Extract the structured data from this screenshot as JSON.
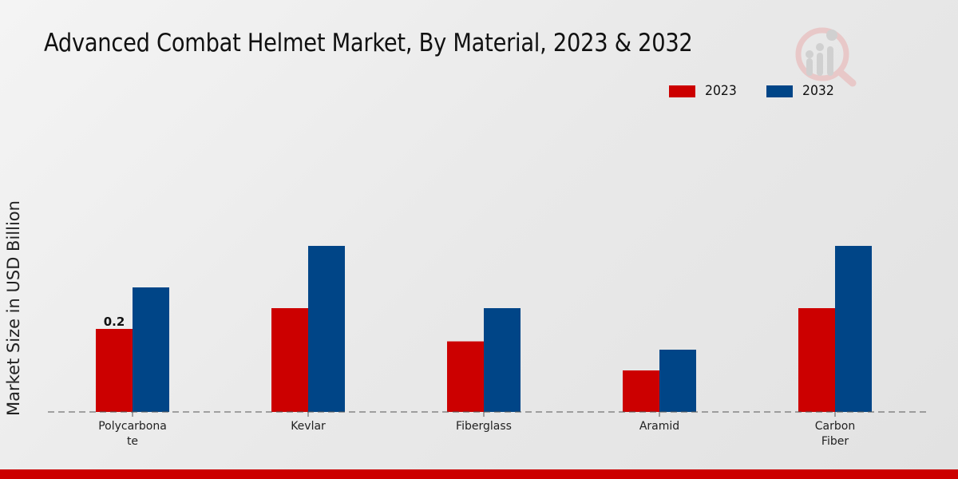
{
  "title": "Advanced Combat Helmet Market, By Material, 2023 & 2032",
  "logo_icon": "analytics-magnifier-logo-icon",
  "colors": {
    "2023": "#cc0000",
    "2032": "#004587",
    "accent_bar": "#cc0000"
  },
  "chart_data": {
    "type": "bar",
    "title": "Advanced Combat Helmet Market, By Material, 2023 & 2032",
    "xlabel": "",
    "ylabel": "Market Size in USD Billion",
    "categories": [
      "Polycarbonate",
      "Kevlar",
      "Fiberglass",
      "Aramid",
      "Carbon Fiber"
    ],
    "category_labels": [
      [
        "Polycarbona",
        "te"
      ],
      [
        "Kevlar"
      ],
      [
        "Fiberglass"
      ],
      [
        "Aramid"
      ],
      [
        "Carbon",
        "Fiber"
      ]
    ],
    "series": [
      {
        "name": "2023",
        "color": "#cc0000",
        "values": [
          0.2,
          0.25,
          0.17,
          0.1,
          0.25
        ]
      },
      {
        "name": "2032",
        "color": "#004587",
        "values": [
          0.3,
          0.4,
          0.25,
          0.15,
          0.4
        ]
      }
    ],
    "data_labels": [
      {
        "series": "2023",
        "category": "Polycarbonate",
        "text": "0.2"
      }
    ],
    "ylim": [
      0,
      0.5
    ],
    "grid": false,
    "legend": {
      "position": "top-right",
      "entries": [
        "2023",
        "2032"
      ]
    }
  }
}
